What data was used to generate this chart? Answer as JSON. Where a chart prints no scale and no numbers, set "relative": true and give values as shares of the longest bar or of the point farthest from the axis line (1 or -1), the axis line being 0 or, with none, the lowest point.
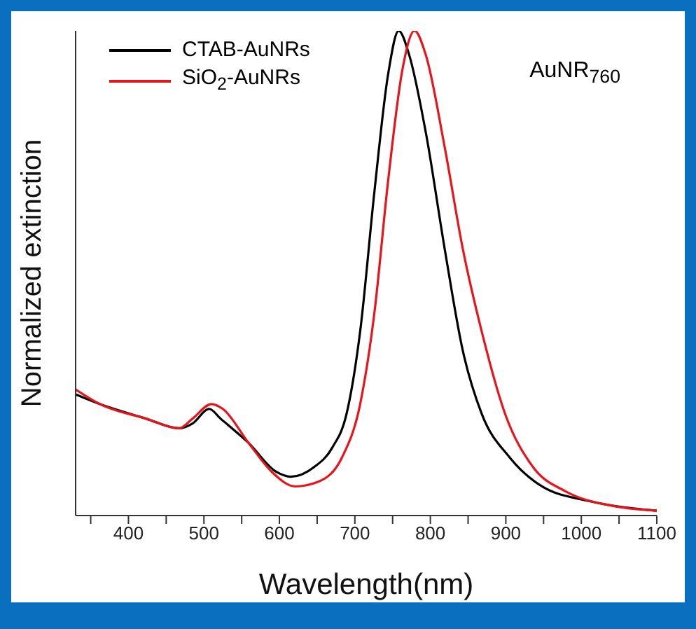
{
  "chart_data": {
    "type": "line",
    "xlabel": "Wavelength(nm)",
    "ylabel": "Normalized extinction",
    "annotations": [
      "AuNR$_{760}$"
    ],
    "relative": true,
    "legend": "top left",
    "marker": "none",
    "line_style": "solid",
    "xlim": [
      330,
      1100
    ],
    "xticks": [
      {
        "value": 350,
        "label": null
      },
      400,
      {
        "value": 450,
        "label": null
      },
      500,
      {
        "value": 550,
        "label": null
      },
      600,
      {
        "value": 650,
        "label": null
      },
      700,
      {
        "value": 750,
        "label": null
      },
      800,
      {
        "value": 850,
        "label": null
      },
      900,
      {
        "value": 950,
        "label": null
      },
      1000,
      {
        "value": 1050,
        "label": null
      },
      1100
    ],
    "series": [
      {
        "name": "CTAB-AuNRs",
        "color": "#000000",
        "x": [
          330,
          362,
          423,
          467,
          485,
          507,
          522,
          559,
          596,
          615,
          646,
          670,
          689,
          707,
          726,
          744,
          758,
          772,
          794,
          819,
          843,
          868,
          905,
          948,
          1010,
          1100
        ],
        "values": [
          0.25,
          0.23,
          0.2,
          0.18,
          0.19,
          0.22,
          0.2,
          0.15,
          0.09,
          0.08,
          0.1,
          0.14,
          0.21,
          0.38,
          0.67,
          0.91,
          1,
          0.95,
          0.79,
          0.55,
          0.34,
          0.21,
          0.12,
          0.06,
          0.03,
          0.01
        ]
      },
      {
        "name": "SiO$_{2}$-AuNRs",
        "color": "#e8141c",
        "x": [
          330,
          362,
          423,
          467,
          485,
          510,
          525,
          559,
          590,
          621,
          652,
          683,
          707,
          726,
          744,
          763,
          779,
          794,
          819,
          843,
          868,
          899,
          936,
          979,
          1041,
          1100
        ],
        "values": [
          0.26,
          0.23,
          0.2,
          0.18,
          0.2,
          0.23,
          0.22,
          0.15,
          0.09,
          0.06,
          0.07,
          0.12,
          0.23,
          0.42,
          0.69,
          0.92,
          1,
          0.95,
          0.76,
          0.55,
          0.38,
          0.21,
          0.1,
          0.05,
          0.02,
          0.01
        ]
      }
    ]
  }
}
